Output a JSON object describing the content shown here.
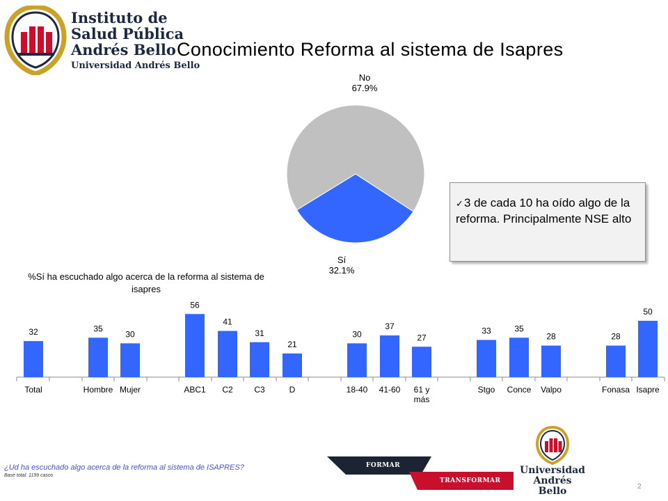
{
  "header": {
    "logo_lines": [
      "Instituto de",
      "Salud Pública",
      "Andrés Bello",
      "Universidad Andrés Bello"
    ],
    "title": "Conocimiento Reforma al sistema de Isapres"
  },
  "chart_data": [
    {
      "type": "pie",
      "slices": [
        {
          "label": "No",
          "value": 67.9,
          "display": "67.9%",
          "color": "#c0c0c0"
        },
        {
          "label": "Sí",
          "value": 32.1,
          "display": "32.1%",
          "color": "#3366ff"
        }
      ]
    },
    {
      "type": "bar",
      "title": "%Sí ha escuchado algo acerca de la reforma al sistema de isapres",
      "bar_color": "#3366ff",
      "ylim": [
        0,
        60
      ],
      "groups": [
        {
          "categories": [
            "Total"
          ],
          "values": [
            32
          ]
        },
        {
          "categories": [
            "Hombre",
            "Mujer"
          ],
          "values": [
            35,
            30
          ]
        },
        {
          "categories": [
            "ABC1",
            "C2",
            "C3",
            "D"
          ],
          "values": [
            56,
            41,
            31,
            21
          ]
        },
        {
          "categories": [
            "18-40",
            "41-60",
            "61 y más"
          ],
          "values": [
            30,
            37,
            27
          ]
        },
        {
          "categories": [
            "Stgo",
            "Conce",
            "Valpo"
          ],
          "values": [
            33,
            35,
            28
          ]
        },
        {
          "categories": [
            "Fonasa",
            "Isapre"
          ],
          "values": [
            28,
            50
          ]
        }
      ]
    }
  ],
  "callout": {
    "text": "3 de cada 10 ha oído algo de la reforma. Principalmente NSE alto"
  },
  "footer": {
    "question": "¿Ud ha escuchado algo acerca de la reforma al sistema de ISAPRES?",
    "base": "Base total: 1199 casos",
    "band_formar": "FORMAR",
    "band_transformar": "TRANSFORMAR",
    "logo_name": "Universidad Andrés Bello",
    "page_number": "2"
  }
}
